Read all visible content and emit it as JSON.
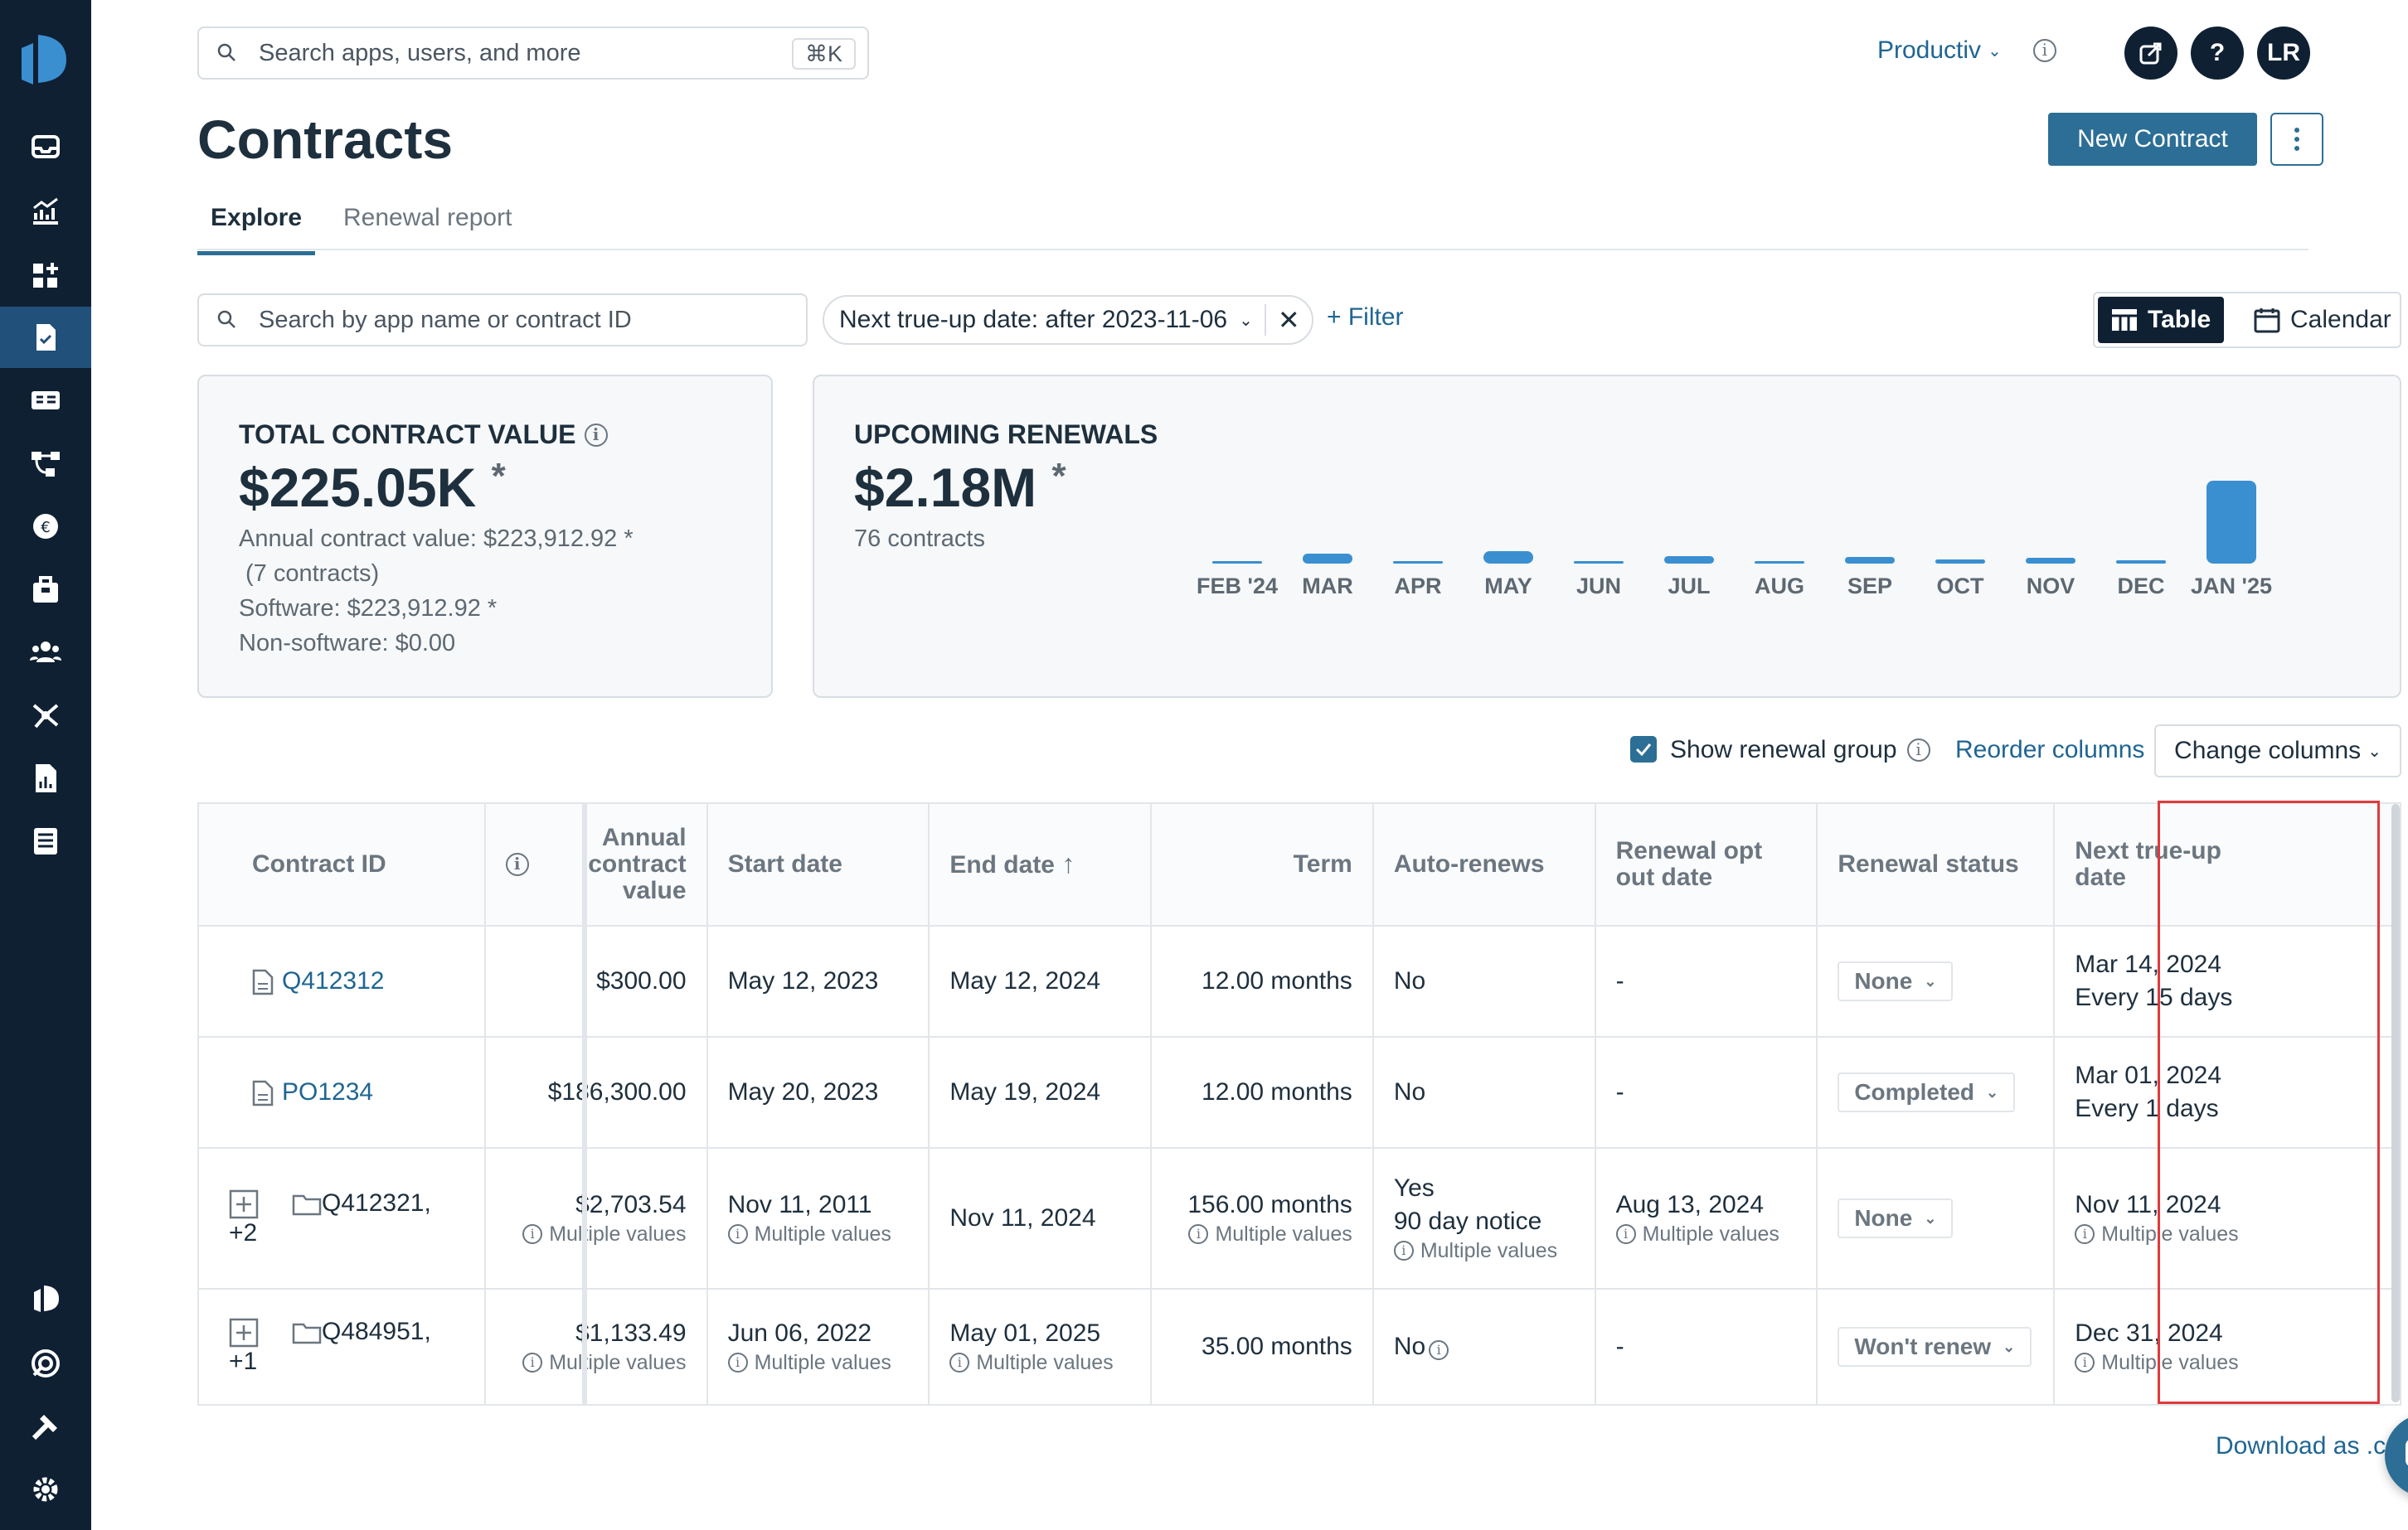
{
  "colors": {
    "sidebar_bg": "#0f2033",
    "accent": "#2c6e95",
    "link": "#1f6593",
    "highlight": "#e03a3e"
  },
  "sidebar": {
    "items": [
      {
        "name": "inbox-icon"
      },
      {
        "name": "chart-icon"
      },
      {
        "name": "apps-add-icon"
      },
      {
        "name": "contract-icon",
        "active": true
      },
      {
        "name": "invoice-icon"
      },
      {
        "name": "workflow-icon"
      },
      {
        "name": "spend-icon"
      },
      {
        "name": "store-icon"
      },
      {
        "name": "users-icon"
      },
      {
        "name": "integrations-icon"
      },
      {
        "name": "report-icon"
      },
      {
        "name": "list-icon"
      }
    ],
    "bottom": [
      {
        "name": "productiv-icon"
      },
      {
        "name": "support-icon"
      },
      {
        "name": "tools-icon"
      },
      {
        "name": "settings-icon"
      }
    ]
  },
  "header": {
    "search_placeholder": "Search apps, users, and more",
    "shortcut": "⌘K",
    "org": "Productiv",
    "avatar": "LR",
    "help": "?"
  },
  "page": {
    "title": "Contracts",
    "new_button": "New Contract"
  },
  "tabs": [
    {
      "label": "Explore",
      "active": true
    },
    {
      "label": "Renewal report",
      "active": false
    }
  ],
  "filters": {
    "search_placeholder": "Search by app name or contract ID",
    "chip": "Next true-up date: after 2023-11-06",
    "add": "Filter"
  },
  "view_toggle": {
    "table": "Table",
    "calendar": "Calendar",
    "selected": "Table"
  },
  "tcv": {
    "label": "TOTAL CONTRACT VALUE",
    "value": "$225.05K",
    "asterisk": "*",
    "annual_label": "Annual contract value:",
    "annual_value": "$223,912.92 *",
    "count": "(7 contracts)",
    "software_label": "Software:",
    "software_value": "$223,912.92 *",
    "nonsoftware_label": "Non-software:",
    "nonsoftware_value": "$0.00"
  },
  "renewals": {
    "label": "UPCOMING RENEWALS",
    "value": "$2.18M",
    "asterisk": "*",
    "count": "76 contracts"
  },
  "chart_data": {
    "type": "bar",
    "categories": [
      "FEB '24",
      "MAR",
      "APR",
      "MAY",
      "JUN",
      "JUL",
      "AUG",
      "SEP",
      "OCT",
      "NOV",
      "DEC",
      "JAN '25"
    ],
    "values": [
      0,
      0.12,
      0.03,
      0.15,
      0.03,
      0.09,
      0.01,
      0.08,
      0.05,
      0.07,
      0.04,
      1.0
    ],
    "ylim": [
      0,
      1
    ],
    "grid": false
  },
  "table_controls": {
    "show_renewal_group": "Show renewal group",
    "checked": true,
    "reorder": "Reorder columns",
    "change": "Change columns"
  },
  "columns": [
    "Contract ID",
    "Annual contract value",
    "Start date",
    "End date",
    "Term",
    "Auto-renews",
    "Renewal opt out date",
    "Renewal status",
    "Next true-up date"
  ],
  "rows": [
    {
      "id": "Q412312",
      "type": "doc",
      "acv": "$300.00",
      "start": "May 12, 2023",
      "end": "May 12, 2024",
      "term": "12.00 months",
      "auto": "No",
      "optout": "-",
      "status": "None",
      "trueup": "Mar 14, 2024",
      "trueup2": "Every 15 days"
    },
    {
      "id": "PO1234",
      "type": "doc",
      "acv": "$186,300.00",
      "start": "May 20, 2023",
      "end": "May 19, 2024",
      "term": "12.00 months",
      "auto": "No",
      "optout": "-",
      "status": "Completed",
      "trueup": "Mar 01, 2024",
      "trueup2": "Every 1 days"
    },
    {
      "id": "Q412321, +2",
      "type": "group",
      "acv": "$2,703.54",
      "start": "Nov 11, 2011",
      "end": "Nov 11, 2024",
      "term": "156.00 months",
      "auto": "Yes",
      "auto2": "90 day notice",
      "optout": "Aug 13, 2024",
      "status": "None",
      "trueup": "Nov 11, 2024",
      "multi": "Multiple values"
    },
    {
      "id": "Q484951, +1",
      "type": "group",
      "acv": "$1,133.49",
      "start": "Jun 06, 2022",
      "end": "May 01, 2025",
      "term": "35.00 months",
      "auto": "No",
      "optout": "-",
      "status": "Won't renew",
      "trueup": "Dec 31, 2024",
      "multi": "Multiple values"
    }
  ],
  "footer": {
    "download": "Download as .csv"
  }
}
